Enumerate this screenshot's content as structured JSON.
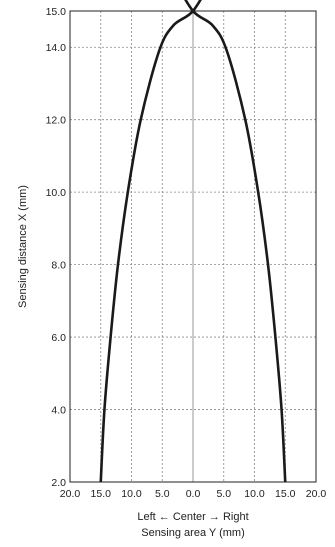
{
  "chart_data": {
    "type": "line",
    "title": "",
    "xlabel_line1": "Left ← Center → Right",
    "xlabel_line2": "Sensing area Y (mm)",
    "ylabel": "Sensing distance X (mm)",
    "xlim": [
      -20,
      20
    ],
    "ylim": [
      2,
      15
    ],
    "x_ticks": [
      -20,
      -15,
      -10,
      -5,
      0,
      5,
      10,
      15,
      20
    ],
    "x_tick_labels": [
      "20.0",
      "15.0",
      "10.0",
      "5.0",
      "0.0",
      "5.0",
      "10.0",
      "15.0",
      "20.0"
    ],
    "y_ticks": [
      2,
      4,
      6,
      8,
      10,
      12,
      14,
      15
    ],
    "y_tick_labels": [
      "2.0",
      "4.0",
      "6.0",
      "8.0",
      "10.0",
      "12.0",
      "14.0",
      "15.0"
    ],
    "grid": true,
    "center_line": 0,
    "line_color": "#1a1a1a",
    "series": [
      {
        "points": [
          [
            -15.0,
            2.0
          ],
          [
            -14.4,
            4.0
          ],
          [
            -13.4,
            6.0
          ],
          [
            -12.2,
            8.0
          ],
          [
            -10.6,
            10.0
          ],
          [
            -8.5,
            12.0
          ],
          [
            -5.5,
            13.9
          ],
          [
            -3.2,
            14.6
          ],
          [
            0.0,
            15.0
          ],
          [
            3.2,
            15.9
          ]
        ]
      },
      {
        "points": [
          [
            15.0,
            2.0
          ],
          [
            14.4,
            4.0
          ],
          [
            13.4,
            6.0
          ],
          [
            12.2,
            8.0
          ],
          [
            10.6,
            10.0
          ],
          [
            8.5,
            12.0
          ],
          [
            5.5,
            13.9
          ],
          [
            3.2,
            14.6
          ],
          [
            0.0,
            15.0
          ],
          [
            -3.2,
            15.9
          ]
        ]
      }
    ]
  }
}
